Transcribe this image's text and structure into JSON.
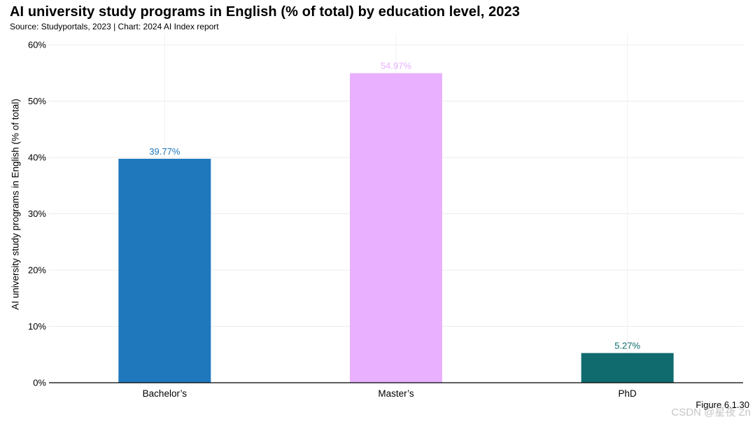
{
  "header": {
    "title": "AI university study programs in English (% of total) by education level, 2023",
    "subtitle": "Source: Studyportals, 2023 | Chart: 2024 AI Index report"
  },
  "footer": {
    "figure": "Figure 6.1.30",
    "watermark": "CSDN @星夜 Zn"
  },
  "chart_data": {
    "type": "bar",
    "title": "AI university study programs in English (% of total) by education level, 2023",
    "xlabel": "",
    "ylabel": "AI university study programs in English (% of total)",
    "categories": [
      "Bachelor’s",
      "Master’s",
      "PhD"
    ],
    "values": [
      39.77,
      54.97,
      5.27
    ],
    "value_labels": [
      "39.77%",
      "54.97%",
      "5.27%"
    ],
    "colors": [
      "#1f77bc",
      "#e8b0ff",
      "#0f6b6e"
    ],
    "label_colors": [
      "#1f77bc",
      "#e8b0ff",
      "#0f6b6e"
    ],
    "ylim": [
      0,
      62
    ],
    "yticks": [
      0,
      10,
      20,
      30,
      40,
      50,
      60
    ],
    "ytick_labels": [
      "0%",
      "10%",
      "20%",
      "30%",
      "40%",
      "50%",
      "60%"
    ],
    "grid": true
  }
}
